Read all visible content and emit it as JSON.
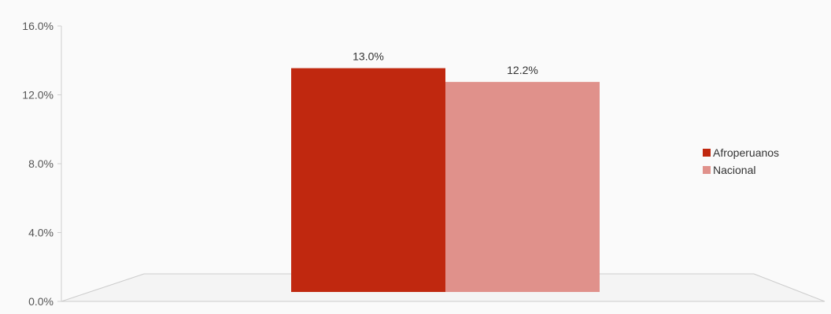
{
  "chart_data": {
    "type": "bar",
    "title": "",
    "xlabel": "",
    "ylabel": "",
    "ylim": [
      0,
      16
    ],
    "y_tick_values": [
      0,
      4,
      8,
      12,
      16
    ],
    "y_tick_labels": [
      "0.0%",
      "4.0%",
      "8.0%",
      "12.0%",
      "16.0%"
    ],
    "categories": [
      ""
    ],
    "series": [
      {
        "name": "Afroperuanos",
        "values": [
          13.0
        ],
        "label": "13.0%",
        "color": "#c0280f"
      },
      {
        "name": "Nacional",
        "values": [
          12.2
        ],
        "label": "12.2%",
        "color": "#e0918b"
      }
    ],
    "grid": false,
    "legend_position": "right",
    "style": "3d-floor"
  }
}
